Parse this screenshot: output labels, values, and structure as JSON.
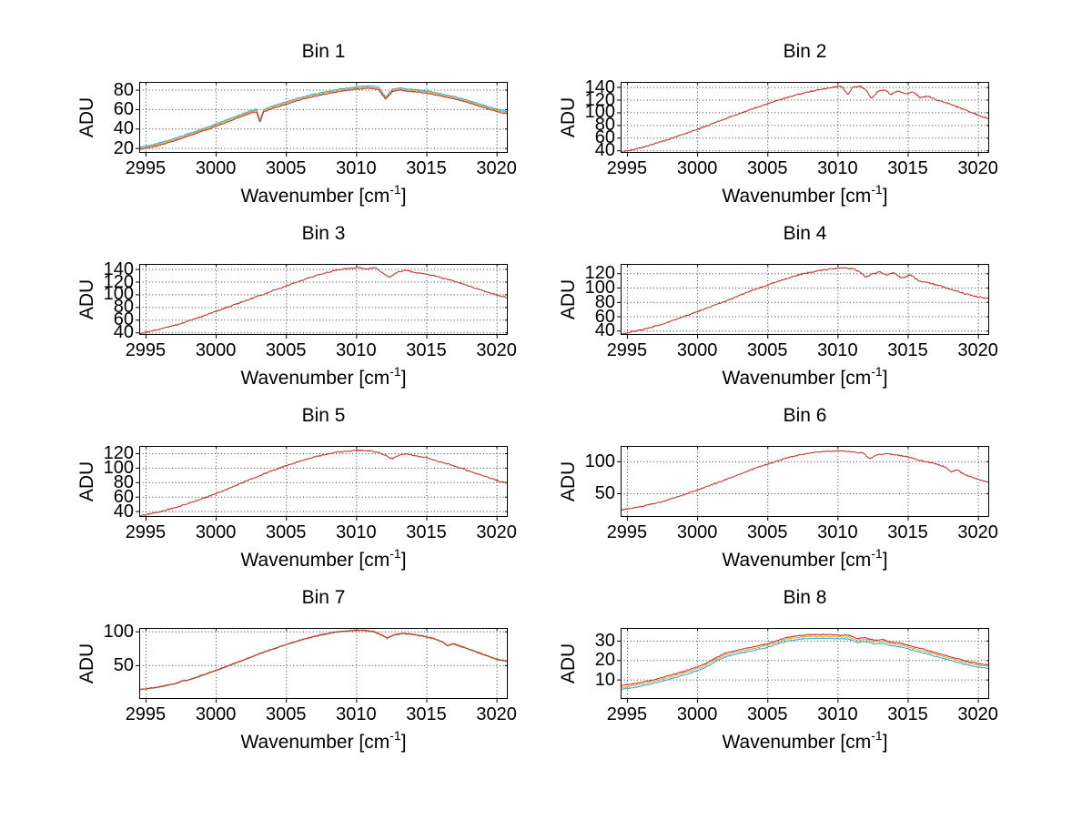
{
  "figure": {
    "background": "#ffffff",
    "ylabel": "ADU",
    "xlabel_prefix": "Wavenumber [cm",
    "xlabel_sup": "-1",
    "xlabel_suffix": "]",
    "x_ticks": [
      2995,
      3000,
      3005,
      3010,
      3015,
      3020
    ],
    "xlim": [
      2994.55,
      3020.8
    ],
    "series_colors": {
      "red": "#c42a28",
      "yellow": "#d0ac3a",
      "cyan": "#2fa8c9"
    },
    "grid_color": "#3a3a3a",
    "axis_color": "#000000",
    "text_color": "#000000"
  },
  "chart_data": [
    {
      "type": "line",
      "title": "Bin 1",
      "xlabel": "Wavenumber [cm-1]",
      "ylabel": "ADU",
      "ylim": [
        15,
        88
      ],
      "yticks": [
        20,
        40,
        60,
        80
      ],
      "noise_amp": 0.6,
      "series": [
        {
          "name": "cyan",
          "offset": 2.4,
          "seed": 111
        },
        {
          "name": "yellow",
          "offset": 1.2,
          "seed": 212
        },
        {
          "name": "red",
          "offset": 0,
          "seed": 313
        }
      ],
      "base_points": [
        [
          2994.55,
          18.5
        ],
        [
          2995.5,
          21
        ],
        [
          2996.5,
          25
        ],
        [
          2997.5,
          29.5
        ],
        [
          2998.5,
          34.5
        ],
        [
          2999.5,
          39.5
        ],
        [
          3000.5,
          45
        ],
        [
          3001.5,
          50.5
        ],
        [
          3002.4,
          55.5
        ],
        [
          3002.9,
          57.5
        ],
        [
          3003.15,
          46
        ],
        [
          3003.4,
          57
        ],
        [
          3004,
          60.5
        ],
        [
          3005,
          65
        ],
        [
          3006,
          69.5
        ],
        [
          3007,
          73
        ],
        [
          3008,
          76
        ],
        [
          3009,
          78.5
        ],
        [
          3010,
          80.5
        ],
        [
          3010.7,
          81.5
        ],
        [
          3011.3,
          81
        ],
        [
          3011.6,
          80
        ],
        [
          3012.1,
          70
        ],
        [
          3012.6,
          78.5
        ],
        [
          3013.2,
          79.5
        ],
        [
          3013.8,
          78
        ],
        [
          3014.5,
          77.5
        ],
        [
          3015.2,
          76
        ],
        [
          3016,
          73.5
        ],
        [
          3017,
          70.5
        ],
        [
          3018,
          66.5
        ],
        [
          3019,
          62
        ],
        [
          3020,
          57.5
        ],
        [
          3020.8,
          55
        ]
      ]
    },
    {
      "type": "line",
      "title": "Bin 2",
      "xlabel": "Wavenumber [cm-1]",
      "ylabel": "ADU",
      "ylim": [
        36,
        148
      ],
      "yticks": [
        40,
        60,
        80,
        100,
        120,
        140
      ],
      "noise_amp": 1.3,
      "series": [
        {
          "name": "red",
          "offset": 0,
          "seed": 321
        }
      ],
      "base_points": [
        [
          2994.55,
          37
        ],
        [
          2996,
          44
        ],
        [
          2997.5,
          54
        ],
        [
          2999,
          65
        ],
        [
          3000.5,
          77
        ],
        [
          3002,
          90
        ],
        [
          3003.5,
          102
        ],
        [
          3004.5,
          110
        ],
        [
          3005.5,
          117
        ],
        [
          3006.5,
          124
        ],
        [
          3007.5,
          130
        ],
        [
          3008.5,
          135
        ],
        [
          3009.5,
          139
        ],
        [
          3010.3,
          141
        ],
        [
          3010.75,
          128
        ],
        [
          3011.1,
          140
        ],
        [
          3011.7,
          141
        ],
        [
          3012.1,
          133
        ],
        [
          3012.4,
          122
        ],
        [
          3012.9,
          133
        ],
        [
          3013.4,
          136
        ],
        [
          3013.8,
          128
        ],
        [
          3014.3,
          134
        ],
        [
          3014.9,
          129
        ],
        [
          3015.4,
          132
        ],
        [
          3015.9,
          123
        ],
        [
          3016.4,
          126
        ],
        [
          3017,
          120
        ],
        [
          3017.8,
          115
        ],
        [
          3018.6,
          108
        ],
        [
          3019.4,
          101
        ],
        [
          3020.2,
          94
        ],
        [
          3020.8,
          90
        ]
      ]
    },
    {
      "type": "line",
      "title": "Bin 3",
      "xlabel": "Wavenumber [cm-1]",
      "ylabel": "ADU",
      "ylim": [
        36,
        148
      ],
      "yticks": [
        40,
        60,
        80,
        100,
        120,
        140
      ],
      "noise_amp": 1.3,
      "series": [
        {
          "name": "red",
          "offset": 0,
          "seed": 331
        }
      ],
      "base_points": [
        [
          2994.55,
          38
        ],
        [
          2996,
          45
        ],
        [
          2997.5,
          54
        ],
        [
          2999,
          65
        ],
        [
          3000.5,
          77
        ],
        [
          3002,
          89
        ],
        [
          3003.5,
          101
        ],
        [
          3004.5,
          109
        ],
        [
          3005.5,
          117
        ],
        [
          3006.5,
          125
        ],
        [
          3007.5,
          132
        ],
        [
          3008.5,
          138
        ],
        [
          3009.5,
          141
        ],
        [
          3010.2,
          142
        ],
        [
          3010.8,
          140
        ],
        [
          3011.4,
          142
        ],
        [
          3012,
          132
        ],
        [
          3012.4,
          127
        ],
        [
          3013,
          136
        ],
        [
          3013.6,
          138
        ],
        [
          3014.2,
          134
        ],
        [
          3015,
          132
        ],
        [
          3015.8,
          128
        ],
        [
          3016.6,
          123
        ],
        [
          3017.4,
          118
        ],
        [
          3018.2,
          112
        ],
        [
          3019,
          106
        ],
        [
          3020,
          99
        ],
        [
          3020.8,
          95
        ]
      ]
    },
    {
      "type": "line",
      "title": "Bin 4",
      "xlabel": "Wavenumber [cm-1]",
      "ylabel": "ADU",
      "ylim": [
        34,
        133
      ],
      "yticks": [
        40,
        60,
        80,
        100,
        120
      ],
      "noise_amp": 1.2,
      "series": [
        {
          "name": "red",
          "offset": 0,
          "seed": 341
        }
      ],
      "base_points": [
        [
          2994.55,
          35
        ],
        [
          2996,
          41
        ],
        [
          2997.5,
          49
        ],
        [
          2999,
          59
        ],
        [
          3000.5,
          70
        ],
        [
          3002,
          81
        ],
        [
          3003.5,
          93
        ],
        [
          3004.5,
          100
        ],
        [
          3005.5,
          107
        ],
        [
          3006.5,
          113
        ],
        [
          3007.5,
          119
        ],
        [
          3008.5,
          123
        ],
        [
          3009.5,
          126
        ],
        [
          3010.3,
          127.5
        ],
        [
          3011,
          127
        ],
        [
          3011.6,
          122
        ],
        [
          3012,
          114
        ],
        [
          3012.5,
          119
        ],
        [
          3013,
          122
        ],
        [
          3013.5,
          117
        ],
        [
          3014,
          121
        ],
        [
          3014.6,
          113
        ],
        [
          3015.2,
          118
        ],
        [
          3015.8,
          109
        ],
        [
          3016.4,
          107
        ],
        [
          3017.2,
          103
        ],
        [
          3018,
          98
        ],
        [
          3019,
          92
        ],
        [
          3020,
          87
        ],
        [
          3020.8,
          85
        ]
      ]
    },
    {
      "type": "line",
      "title": "Bin 5",
      "xlabel": "Wavenumber [cm-1]",
      "ylabel": "ADU",
      "ylim": [
        32,
        130
      ],
      "yticks": [
        40,
        60,
        80,
        100,
        120
      ],
      "noise_amp": 1.1,
      "series": [
        {
          "name": "red",
          "offset": 0,
          "seed": 351
        }
      ],
      "base_points": [
        [
          2994.55,
          33
        ],
        [
          2996,
          39
        ],
        [
          2997.5,
          47
        ],
        [
          2999,
          57
        ],
        [
          3000.5,
          68
        ],
        [
          3002,
          80
        ],
        [
          3003.5,
          92
        ],
        [
          3004.5,
          99
        ],
        [
          3005.5,
          106
        ],
        [
          3006.5,
          112
        ],
        [
          3007.5,
          117
        ],
        [
          3008.5,
          121
        ],
        [
          3009.5,
          123
        ],
        [
          3010.3,
          124
        ],
        [
          3011,
          123
        ],
        [
          3011.6,
          121
        ],
        [
          3012.1,
          117
        ],
        [
          3012.5,
          112
        ],
        [
          3013,
          117
        ],
        [
          3013.6,
          119
        ],
        [
          3014.3,
          116
        ],
        [
          3015,
          114
        ],
        [
          3015.8,
          109
        ],
        [
          3016.6,
          105
        ],
        [
          3017.5,
          99
        ],
        [
          3018.4,
          93
        ],
        [
          3019.3,
          87
        ],
        [
          3020.2,
          81
        ],
        [
          3020.8,
          79
        ]
      ]
    },
    {
      "type": "line",
      "title": "Bin 6",
      "xlabel": "Wavenumber [cm-1]",
      "ylabel": "ADU",
      "ylim": [
        13,
        124
      ],
      "yticks": [
        50,
        100
      ],
      "noise_amp": 1.1,
      "series": [
        {
          "name": "red",
          "offset": 0,
          "seed": 361
        }
      ],
      "base_points": [
        [
          2994.55,
          24
        ],
        [
          2996,
          29
        ],
        [
          2997.5,
          37
        ],
        [
          2999,
          47
        ],
        [
          3000.5,
          59
        ],
        [
          3002,
          71
        ],
        [
          3003.5,
          84
        ],
        [
          3004.5,
          92
        ],
        [
          3005.5,
          99
        ],
        [
          3006.5,
          106
        ],
        [
          3007.5,
          111
        ],
        [
          3008.5,
          114
        ],
        [
          3009.5,
          116
        ],
        [
          3010.3,
          116
        ],
        [
          3011,
          115
        ],
        [
          3011.8,
          113
        ],
        [
          3012.3,
          104
        ],
        [
          3012.8,
          110
        ],
        [
          3013.5,
          112
        ],
        [
          3014.2,
          110
        ],
        [
          3015,
          107
        ],
        [
          3015.6,
          103
        ],
        [
          3016.2,
          100
        ],
        [
          3017,
          96
        ],
        [
          3017.7,
          91
        ],
        [
          3018.1,
          83
        ],
        [
          3018.5,
          87
        ],
        [
          3019,
          80
        ],
        [
          3019.6,
          75
        ],
        [
          3020.2,
          70
        ],
        [
          3020.8,
          67
        ]
      ]
    },
    {
      "type": "line",
      "title": "Bin 7",
      "xlabel": "Wavenumber [cm-1]",
      "ylabel": "ADU",
      "ylim": [
        0,
        105
      ],
      "yticks": [
        50,
        100
      ],
      "noise_amp": 0.9,
      "series": [
        {
          "name": "cyan",
          "offset": -0.6,
          "seed": 171
        },
        {
          "name": "yellow",
          "offset": -0.35,
          "seed": 272
        },
        {
          "name": "red",
          "offset": 0,
          "seed": 373
        }
      ],
      "base_points": [
        [
          2994.55,
          14
        ],
        [
          2996,
          18
        ],
        [
          2997.3,
          24
        ],
        [
          2997.6,
          27
        ],
        [
          2998,
          28
        ],
        [
          2999,
          35
        ],
        [
          3000.5,
          46
        ],
        [
          3002,
          58
        ],
        [
          3003.5,
          70
        ],
        [
          3004.5,
          77
        ],
        [
          3005.5,
          84
        ],
        [
          3006.5,
          90
        ],
        [
          3007.5,
          95
        ],
        [
          3008.5,
          99
        ],
        [
          3009.5,
          101
        ],
        [
          3010.4,
          102
        ],
        [
          3011.2,
          100
        ],
        [
          3011.8,
          95
        ],
        [
          3012.2,
          90
        ],
        [
          3012.7,
          95
        ],
        [
          3013.3,
          97
        ],
        [
          3014,
          96
        ],
        [
          3014.8,
          93
        ],
        [
          3015.6,
          89
        ],
        [
          3016.2,
          84
        ],
        [
          3016.5,
          79
        ],
        [
          3016.9,
          82
        ],
        [
          3017.6,
          77
        ],
        [
          3018.4,
          71
        ],
        [
          3019.2,
          65
        ],
        [
          3020,
          59
        ],
        [
          3020.8,
          56
        ]
      ]
    },
    {
      "type": "line",
      "title": "Bin 8",
      "xlabel": "Wavenumber [cm-1]",
      "ylabel": "ADU",
      "ylim": [
        0,
        36.5
      ],
      "yticks": [
        10,
        20,
        30
      ],
      "noise_amp": 0.33,
      "series": [
        {
          "name": "cyan",
          "offset": -1.9,
          "seed": 181
        },
        {
          "name": "yellow",
          "offset": -0.9,
          "seed": 282
        },
        {
          "name": "red",
          "offset": 0,
          "seed": 383
        }
      ],
      "base_points": [
        [
          2994.55,
          6.8
        ],
        [
          2995.5,
          7.8
        ],
        [
          2996.5,
          9.2
        ],
        [
          2997.5,
          11
        ],
        [
          2998.5,
          13
        ],
        [
          2999.5,
          15.2
        ],
        [
          3000.5,
          17.8
        ],
        [
          3001.3,
          21
        ],
        [
          3002,
          23.5
        ],
        [
          3003,
          25.3
        ],
        [
          3004,
          26.8
        ],
        [
          3005,
          28.4
        ],
        [
          3005.7,
          30
        ],
        [
          3006.3,
          31.5
        ],
        [
          3007,
          32.4
        ],
        [
          3008,
          33
        ],
        [
          3009,
          33.2
        ],
        [
          3010,
          32.8
        ],
        [
          3010.8,
          32.8
        ],
        [
          3011.4,
          31
        ],
        [
          3012,
          31.5
        ],
        [
          3012.6,
          30.2
        ],
        [
          3013.2,
          30.6
        ],
        [
          3013.8,
          29.2
        ],
        [
          3014.6,
          28.6
        ],
        [
          3015.2,
          27.2
        ],
        [
          3016,
          25.8
        ],
        [
          3017,
          23.8
        ],
        [
          3018,
          21.8
        ],
        [
          3019,
          19.8
        ],
        [
          3020,
          18.2
        ],
        [
          3020.8,
          17.6
        ]
      ]
    }
  ]
}
